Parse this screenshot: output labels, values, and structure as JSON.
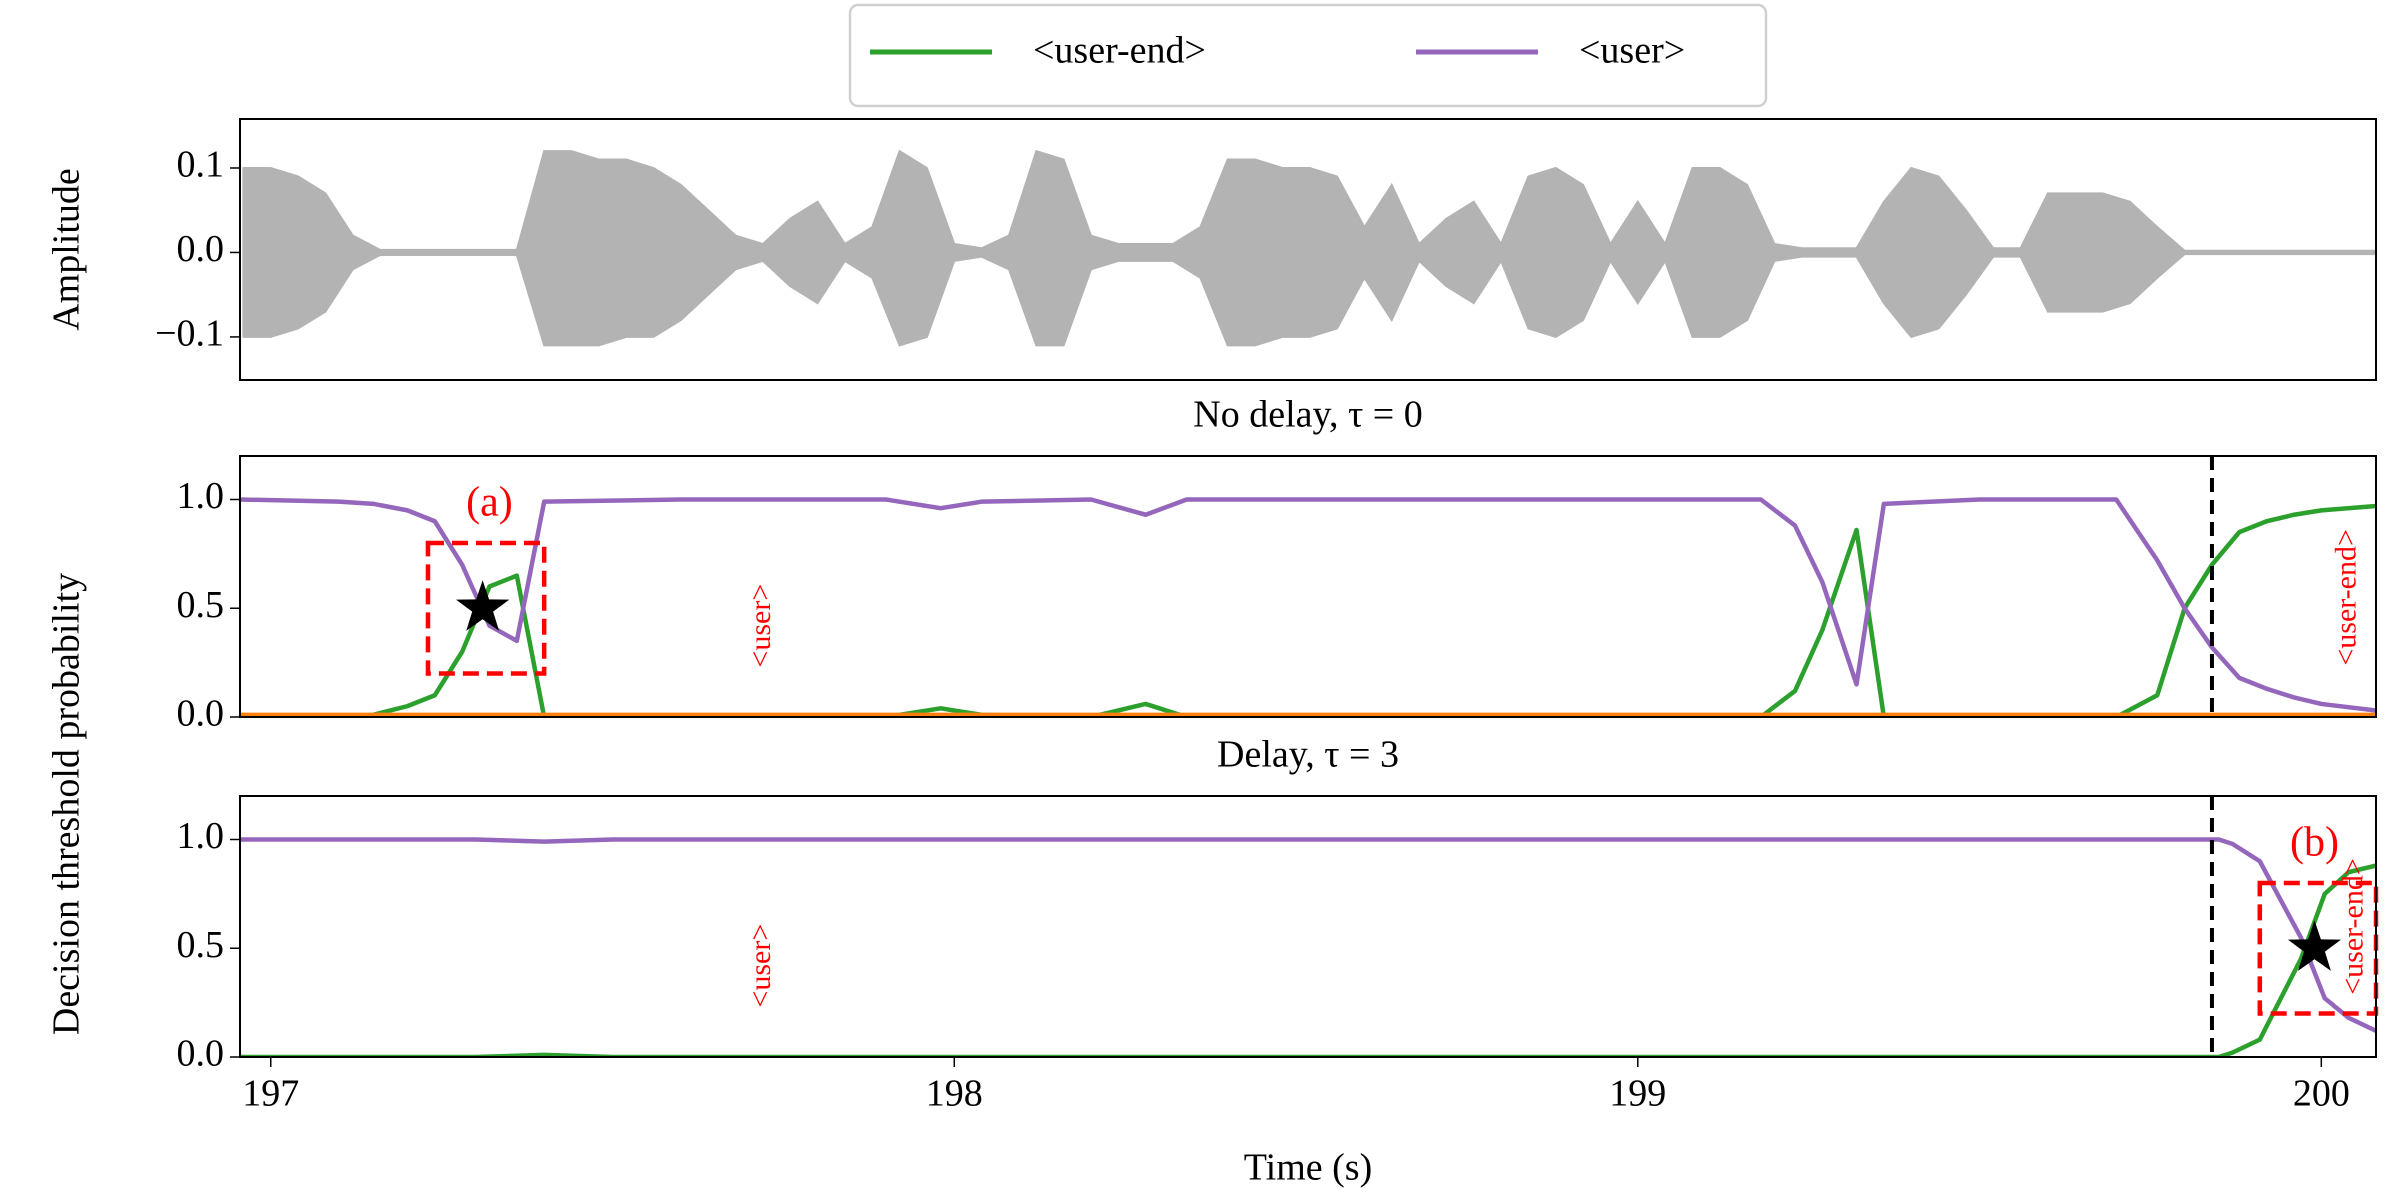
{
  "chart_data": [
    {
      "type": "area",
      "ylabel": "Amplitude",
      "color": "#b3b3b3",
      "xlim": [
        196.955,
        200.08
      ],
      "ylim": [
        -0.151,
        0.158
      ],
      "yticks": [
        {
          "value": 0.1,
          "label": "0.1"
        },
        {
          "value": 0,
          "label": "0.0"
        },
        {
          "value": -0.1,
          "label": "−0.1"
        }
      ],
      "x": [
        196.96,
        197,
        197.04,
        197.08,
        197.12,
        197.16,
        197.2,
        197.24,
        197.28,
        197.32,
        197.36,
        197.4,
        197.44,
        197.48,
        197.52,
        197.56,
        197.6,
        197.64,
        197.68,
        197.72,
        197.76,
        197.8,
        197.84,
        197.88,
        197.92,
        197.96,
        198,
        198.04,
        198.08,
        198.12,
        198.16,
        198.2,
        198.24,
        198.28,
        198.32,
        198.36,
        198.4,
        198.44,
        198.48,
        198.52,
        198.56,
        198.6,
        198.64,
        198.68,
        198.72,
        198.76,
        198.8,
        198.84,
        198.88,
        198.92,
        198.96,
        199,
        199.04,
        199.08,
        199.12,
        199.16,
        199.2,
        199.24,
        199.28,
        199.32,
        199.36,
        199.4,
        199.44,
        199.48,
        199.52,
        199.56,
        199.6,
        199.64,
        199.68,
        199.72,
        199.76,
        199.8,
        199.84,
        199.88,
        199.92,
        199.96,
        200,
        200.04,
        200.08
      ],
      "values": [
        0.1,
        0.1,
        0.09,
        0.07,
        0.02,
        0.003,
        0.003,
        0.003,
        0.003,
        0.003,
        0.003,
        0.12,
        0.12,
        0.11,
        0.11,
        0.1,
        0.08,
        0.05,
        0.02,
        0.01,
        0.04,
        0.06,
        0.01,
        0.03,
        0.12,
        0.1,
        0.01,
        0.005,
        0.02,
        0.12,
        0.11,
        0.02,
        0.01,
        0.01,
        0.01,
        0.03,
        0.11,
        0.11,
        0.1,
        0.1,
        0.09,
        0.03,
        0.08,
        0.01,
        0.04,
        0.06,
        0.01,
        0.09,
        0.1,
        0.08,
        0.01,
        0.06,
        0.01,
        0.1,
        0.1,
        0.08,
        0.01,
        0.005,
        0.005,
        0.005,
        0.06,
        0.1,
        0.09,
        0.05,
        0.005,
        0.005,
        0.07,
        0.07,
        0.07,
        0.06,
        0.03,
        0.002,
        0.002,
        0.002,
        0.002,
        0.002,
        0.002,
        0.002,
        0.002
      ],
      "lower": [
        -0.1,
        -0.1,
        -0.09,
        -0.07,
        -0.02,
        -0.003,
        -0.003,
        -0.003,
        -0.003,
        -0.003,
        -0.003,
        -0.11,
        -0.11,
        -0.11,
        -0.1,
        -0.1,
        -0.08,
        -0.05,
        -0.02,
        -0.01,
        -0.04,
        -0.06,
        -0.01,
        -0.03,
        -0.11,
        -0.1,
        -0.01,
        -0.005,
        -0.02,
        -0.11,
        -0.11,
        -0.02,
        -0.01,
        -0.01,
        -0.01,
        -0.03,
        -0.11,
        -0.11,
        -0.1,
        -0.1,
        -0.09,
        -0.03,
        -0.08,
        -0.01,
        -0.04,
        -0.06,
        -0.01,
        -0.09,
        -0.1,
        -0.08,
        -0.01,
        -0.06,
        -0.01,
        -0.1,
        -0.1,
        -0.08,
        -0.01,
        -0.005,
        -0.005,
        -0.005,
        -0.06,
        -0.1,
        -0.09,
        -0.05,
        -0.005,
        -0.005,
        -0.07,
        -0.07,
        -0.07,
        -0.06,
        -0.03,
        -0.002,
        -0.002,
        -0.002,
        -0.002,
        -0.002,
        -0.002,
        -0.002,
        -0.002
      ]
    },
    {
      "type": "line",
      "title": "No delay, τ = 0",
      "ylabel": "Decision threshold probability",
      "xlim": [
        196.955,
        200.08
      ],
      "ylim": [
        0,
        1.2
      ],
      "yticks": [
        {
          "value": 0,
          "label": "0.0"
        },
        {
          "value": 0.5,
          "label": "0.5"
        },
        {
          "value": 1,
          "label": "1.0"
        }
      ],
      "x": [
        196.955,
        197.1,
        197.15,
        197.2,
        197.24,
        197.28,
        197.32,
        197.36,
        197.4,
        197.6,
        197.9,
        197.98,
        198.04,
        198.2,
        198.28,
        198.34,
        198.6,
        199,
        199.18,
        199.23,
        199.27,
        199.32,
        199.36,
        199.5,
        199.7,
        199.76,
        199.8,
        199.84,
        199.88,
        199.92,
        199.96,
        200,
        200.08
      ],
      "series": [
        {
          "name": "<user-end>",
          "color": "#2ca02c",
          "values": [
            0,
            0,
            0.01,
            0.05,
            0.1,
            0.3,
            0.6,
            0.65,
            0,
            0,
            0,
            0.04,
            0.01,
            0,
            0.06,
            0,
            0,
            0,
            0,
            0.12,
            0.4,
            0.86,
            0,
            0,
            0,
            0.1,
            0.5,
            0.7,
            0.85,
            0.9,
            0.93,
            0.95,
            0.97
          ]
        },
        {
          "name": "<user>",
          "color": "#9467bd",
          "values": [
            1,
            0.99,
            0.98,
            0.95,
            0.9,
            0.7,
            0.42,
            0.35,
            0.99,
            1,
            1,
            0.96,
            0.99,
            1,
            0.93,
            1,
            1,
            1,
            1,
            0.88,
            0.62,
            0.15,
            0.98,
            1,
            1,
            0.72,
            0.5,
            0.32,
            0.18,
            0.13,
            0.09,
            0.06,
            0.03
          ]
        },
        {
          "color": "#ff7f0e",
          "x": [
            196.955,
            200.08
          ],
          "values": [
            0.01,
            0.01
          ]
        }
      ],
      "vline": 199.84,
      "annotation_color": "#ff0000",
      "highlight": {
        "x": [
          197.23,
          197.4
        ],
        "y": [
          0.2,
          0.8
        ]
      },
      "marker": {
        "x": 197.31,
        "y": 0.5
      },
      "annotations": [
        {
          "text": "(a)",
          "x": 197.32,
          "y": 0.97
        },
        {
          "text": "<user>",
          "x": 197.72,
          "y": 0.42,
          "rotation": 90
        },
        {
          "text": "<user-end>",
          "x": 200.04,
          "y": 0.55,
          "rotation": 90
        }
      ]
    },
    {
      "type": "line",
      "title": "Delay, τ = 3",
      "xlabel": "Time (s)",
      "xlim": [
        196.955,
        200.08
      ],
      "ylim": [
        0,
        1.2
      ],
      "xticks": [
        197,
        198,
        199,
        200
      ],
      "yticks": [
        {
          "value": 0,
          "label": "0.0"
        },
        {
          "value": 0.5,
          "label": "0.5"
        },
        {
          "value": 1,
          "label": "1.0"
        }
      ],
      "x": [
        196.955,
        197.3,
        197.4,
        197.5,
        199.85,
        199.87,
        199.91,
        199.97,
        200.005,
        200.04,
        200.08
      ],
      "series": [
        {
          "name": "<user-end>",
          "color": "#2ca02c",
          "values": [
            0,
            0,
            0.01,
            0,
            0,
            0.02,
            0.08,
            0.45,
            0.75,
            0.85,
            0.88
          ]
        },
        {
          "name": "<user>",
          "color": "#9467bd",
          "values": [
            1,
            1,
            0.99,
            1,
            1,
            0.98,
            0.9,
            0.55,
            0.27,
            0.18,
            0.12
          ]
        }
      ],
      "vline": 199.84,
      "annotation_color": "#ff0000",
      "highlight": {
        "x": [
          199.91,
          200.08
        ],
        "y": [
          0.2,
          0.8
        ]
      },
      "marker": {
        "x": 199.99,
        "y": 0.5
      },
      "annotations": [
        {
          "text": "(b)",
          "x": 199.99,
          "y": 0.97
        },
        {
          "text": "<user>",
          "x": 197.72,
          "y": 0.42,
          "rotation": 90
        },
        {
          "text": "<user-end>",
          "x": 200.05,
          "y": 0.6,
          "rotation": 90
        }
      ]
    }
  ]
}
